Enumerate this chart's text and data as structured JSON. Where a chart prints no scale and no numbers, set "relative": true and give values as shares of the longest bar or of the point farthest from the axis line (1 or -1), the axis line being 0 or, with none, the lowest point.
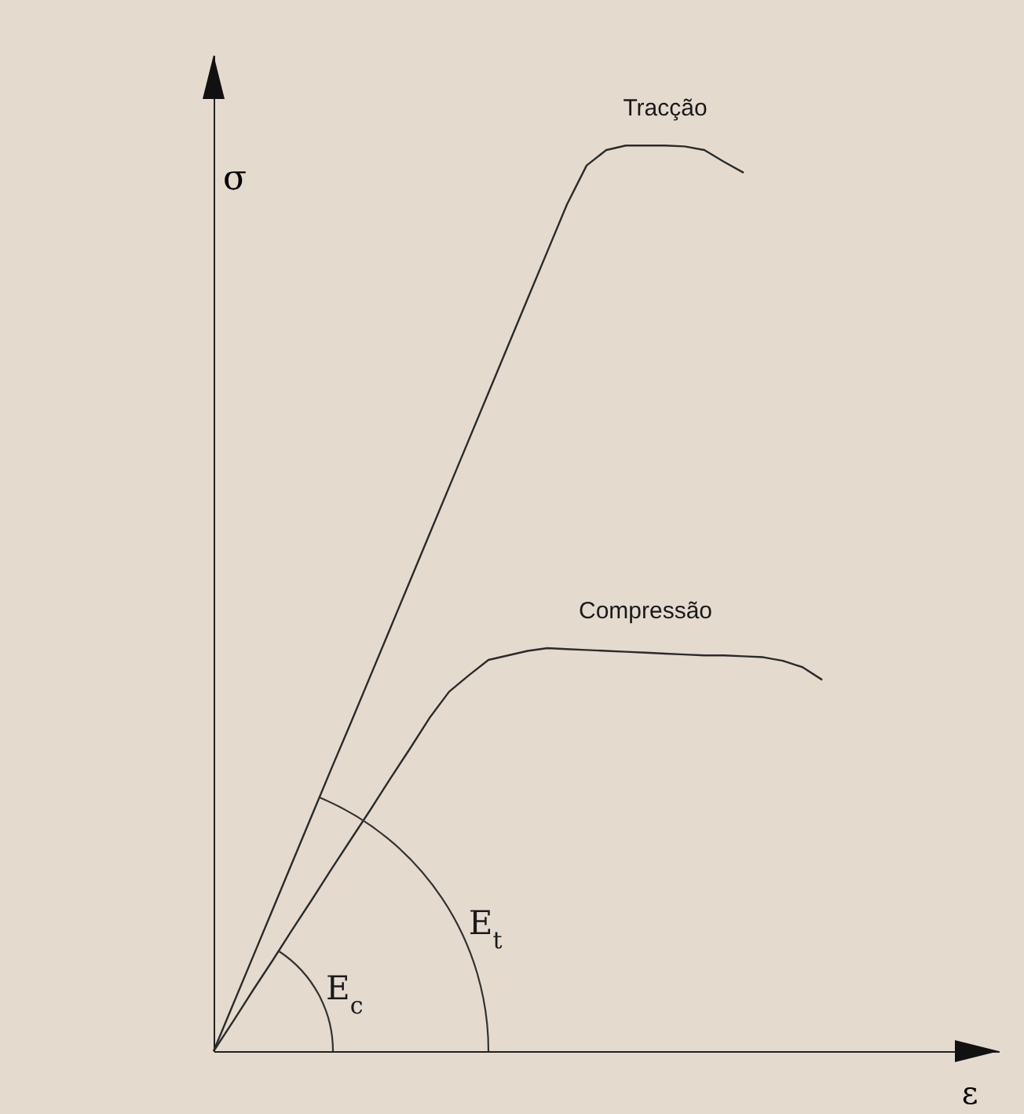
{
  "chart_data": {
    "type": "line",
    "relative": true,
    "xlabel": "ε",
    "ylabel": "σ",
    "categories": [
      null,
      null,
      null,
      null,
      null,
      null,
      null,
      null,
      null,
      null,
      null,
      null,
      null,
      null,
      null,
      null,
      null,
      null,
      null,
      null,
      null,
      null,
      null,
      null,
      null,
      null,
      null,
      null,
      null,
      null,
      null,
      null,
      null,
      null,
      null,
      null,
      null,
      null,
      null,
      null,
      null
    ],
    "series": [
      {
        "name": "Tracção",
        "color": "#2b2b2b",
        "values": [
          0,
          0.052,
          0.104,
          0.156,
          0.208,
          0.26,
          0.312,
          0.363,
          0.415,
          0.467,
          0.519,
          0.571,
          0.623,
          0.675,
          0.727,
          0.779,
          0.831,
          0.883,
          0.935,
          0.978,
          0.995,
          1,
          1,
          1,
          0.999,
          0.995,
          0.982,
          0.97,
          null,
          null,
          null,
          null,
          null,
          null,
          null,
          null,
          null,
          null,
          null,
          null,
          null
        ]
      },
      {
        "name": "Compressão",
        "color": "#2b2b2b",
        "values": [
          0,
          0.033,
          0.067,
          0.1,
          0.134,
          0.167,
          0.201,
          0.234,
          0.267,
          0.301,
          0.334,
          0.368,
          0.397,
          0.415,
          0.432,
          0.437,
          0.442,
          0.445,
          0.444,
          0.443,
          0.442,
          0.441,
          0.44,
          0.439,
          0.438,
          0.437,
          0.437,
          0.436,
          0.435,
          0.431,
          0.424,
          0.41,
          null,
          null,
          null,
          null,
          null,
          null,
          null,
          null,
          null
        ]
      }
    ],
    "annotations": [
      "E$_{t}$",
      "E$_{c}$"
    ]
  }
}
